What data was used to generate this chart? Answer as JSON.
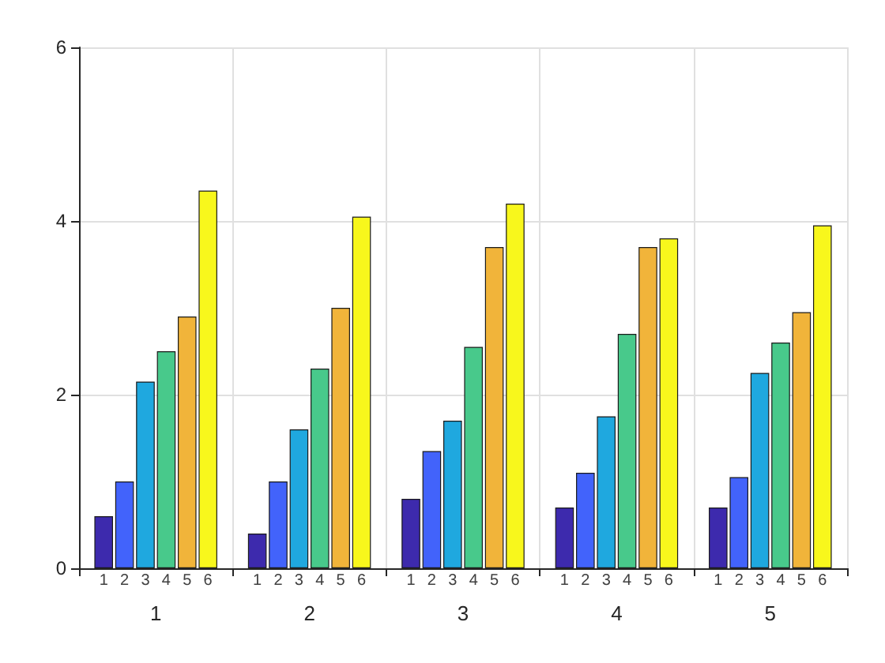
{
  "chart_data": {
    "type": "bar",
    "categories": [
      "1",
      "2",
      "3",
      "4",
      "5"
    ],
    "series": [
      {
        "name": "1",
        "color": "#3d2aad",
        "values": [
          0.6,
          0.4,
          0.8,
          0.7,
          0.7
        ]
      },
      {
        "name": "2",
        "color": "#4263fb",
        "values": [
          1.0,
          1.0,
          1.35,
          1.1,
          1.05
        ]
      },
      {
        "name": "3",
        "color": "#1fa8df",
        "values": [
          2.15,
          1.6,
          1.7,
          1.75,
          2.25
        ]
      },
      {
        "name": "4",
        "color": "#48c98b",
        "values": [
          2.5,
          2.3,
          2.55,
          2.7,
          2.6
        ]
      },
      {
        "name": "5",
        "color": "#f1b43a",
        "values": [
          2.9,
          3.0,
          3.7,
          3.7,
          2.95
        ]
      },
      {
        "name": "6",
        "color": "#f8f71c",
        "values": [
          4.35,
          4.05,
          4.2,
          3.8,
          3.95
        ]
      }
    ],
    "ylim": [
      0,
      6
    ],
    "yticks": [
      0,
      2,
      4,
      6
    ],
    "grid": true
  }
}
